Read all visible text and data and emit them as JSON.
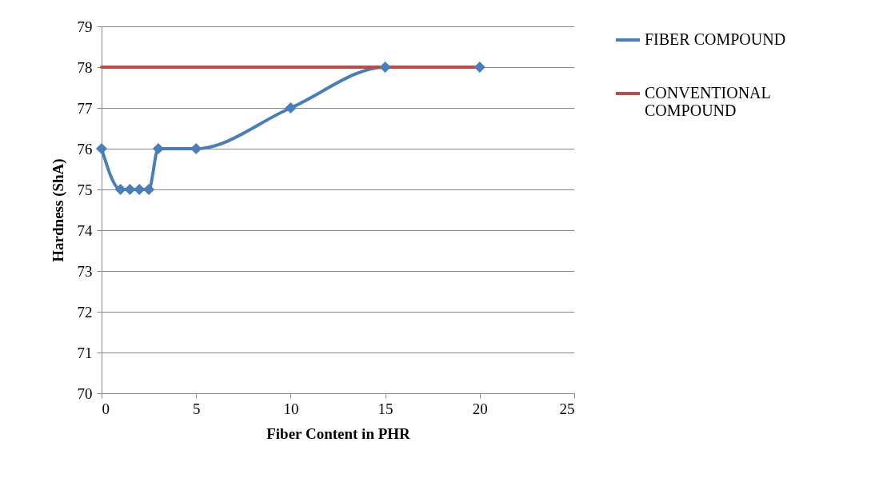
{
  "chart_data": {
    "type": "line",
    "xlabel": "Fiber Content in PHR",
    "ylabel": "Hardness (ShA)",
    "xlim": [
      0,
      25
    ],
    "xticks": [
      0,
      5,
      10,
      15,
      20,
      25
    ],
    "ylim": [
      70,
      79
    ],
    "yticks": [
      70,
      71,
      72,
      73,
      74,
      75,
      76,
      77,
      78,
      79
    ],
    "grid": "y",
    "legend": "right",
    "series": [
      {
        "name": "FIBER COMPOUND",
        "color": "#4a7ebb",
        "marker": "diamond",
        "x": [
          0,
          1,
          1.5,
          2,
          2.5,
          3,
          5,
          10,
          15,
          20
        ],
        "values": [
          76,
          75,
          75,
          75,
          75,
          76,
          76,
          77,
          78,
          78
        ]
      },
      {
        "name": "CONVENTIONAL COMPOUND",
        "color": "#be4b48",
        "marker": "none",
        "x": [
          0,
          20
        ],
        "values": [
          78,
          78
        ]
      }
    ]
  }
}
